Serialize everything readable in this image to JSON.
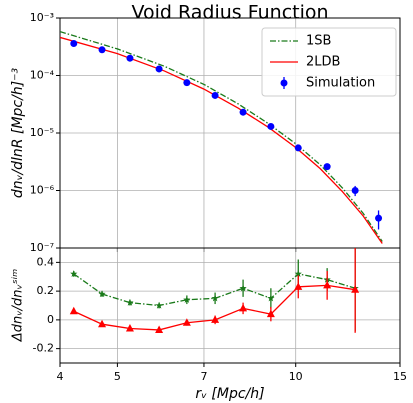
{
  "chart_data": [
    {
      "type": "line",
      "title": "Void Radius Function",
      "ylabel": "dnᵥ/dlnR [Mpc/h]⁻³",
      "xscale": "log",
      "yscale": "log",
      "grid": true,
      "legend": "upper right",
      "xlim": [
        4,
        15
      ],
      "xticks": [
        4,
        5,
        7,
        10,
        15
      ],
      "ylim": [
        1e-07,
        0.001
      ],
      "yticks": [
        {
          "value": 1e-07,
          "label": "10⁻⁷"
        },
        {
          "value": 1e-06,
          "label": "10⁻⁶"
        },
        {
          "value": 1e-05,
          "label": "10⁻⁵"
        },
        {
          "value": 0.0001,
          "label": "10⁻⁴"
        },
        {
          "value": 0.001,
          "label": "10⁻³"
        }
      ],
      "series": [
        {
          "name": "1SB",
          "type": "line",
          "color": "#1a7a1a",
          "dash": "6 2 1.5 2",
          "x": [
            4,
            5,
            6,
            7,
            8,
            9,
            10,
            11,
            12,
            13,
            14
          ],
          "values": [
            0.00058,
            0.00029,
            0.000145,
            7e-05,
            3.2e-05,
            1.45e-05,
            6.5e-06,
            2.8e-06,
            1.1e-06,
            4e-07,
            1.3e-07
          ]
        },
        {
          "name": "2LDB",
          "type": "line",
          "color": "#ff0000",
          "x": [
            4,
            5,
            6,
            7,
            8,
            9,
            10,
            11,
            12,
            13,
            14
          ],
          "values": [
            0.00046,
            0.00024,
            0.00012,
            5.8e-05,
            2.7e-05,
            1.25e-05,
            5.6e-06,
            2.4e-06,
            9.5e-07,
            3.6e-07,
            1.2e-07
          ]
        },
        {
          "name": "Simulation",
          "type": "scatter",
          "color": "#0000ff",
          "x": [
            4.22,
            4.71,
            5.25,
            5.88,
            6.55,
            7.31,
            8.15,
            9.08,
            10.1,
            11.3,
            12.6,
            13.8
          ],
          "values": [
            0.00036,
            0.00028,
            0.0002,
            0.00013,
            7.5e-05,
            4.5e-05,
            2.3e-05,
            1.3e-05,
            5.5e-06,
            2.6e-06,
            1e-06,
            3.3e-07
          ],
          "errors": [
            1.5e-05,
            1e-05,
            7e-06,
            5e-06,
            3e-06,
            2e-06,
            1.2e-06,
            8e-07,
            5e-07,
            3e-07,
            2e-07,
            1.2e-07
          ]
        }
      ]
    },
    {
      "type": "errorbar",
      "xlabel": "rᵥ [Mpc/h]",
      "ylabel": "Δdnᵥ/dnᵥˢⁱᵐ",
      "xscale": "log",
      "grid": true,
      "xlim": [
        4,
        15
      ],
      "xticks": [
        4,
        5,
        7,
        10,
        15
      ],
      "ylim": [
        -0.3,
        0.5
      ],
      "yticks": [
        -0.2,
        0.0,
        0.2,
        0.4
      ],
      "series": [
        {
          "color": "#1a7a1a",
          "dash": "6 2 1.5 2",
          "marker": "star",
          "x": [
            4.22,
            4.71,
            5.25,
            5.88,
            6.55,
            7.31,
            8.15,
            9.08,
            10.1,
            11.3,
            12.6
          ],
          "values": [
            0.32,
            0.18,
            0.12,
            0.1,
            0.14,
            0.15,
            0.22,
            0.15,
            0.32,
            0.28,
            0.22
          ],
          "errors": [
            0.02,
            0.02,
            0.02,
            0.02,
            0.03,
            0.04,
            0.06,
            0.07,
            0.1,
            0.08,
            0.3
          ]
        },
        {
          "color": "#ff0000",
          "marker": "triangle",
          "x": [
            4.22,
            4.71,
            5.25,
            5.88,
            6.55,
            7.31,
            8.15,
            9.08,
            10.1,
            11.3,
            12.6
          ],
          "values": [
            0.06,
            -0.03,
            -0.06,
            -0.07,
            -0.02,
            0.0,
            0.08,
            0.04,
            0.23,
            0.24,
            0.21
          ],
          "errors": [
            0.01,
            0.01,
            0.01,
            0.01,
            0.02,
            0.03,
            0.04,
            0.05,
            0.08,
            0.1,
            0.3
          ]
        }
      ]
    }
  ]
}
